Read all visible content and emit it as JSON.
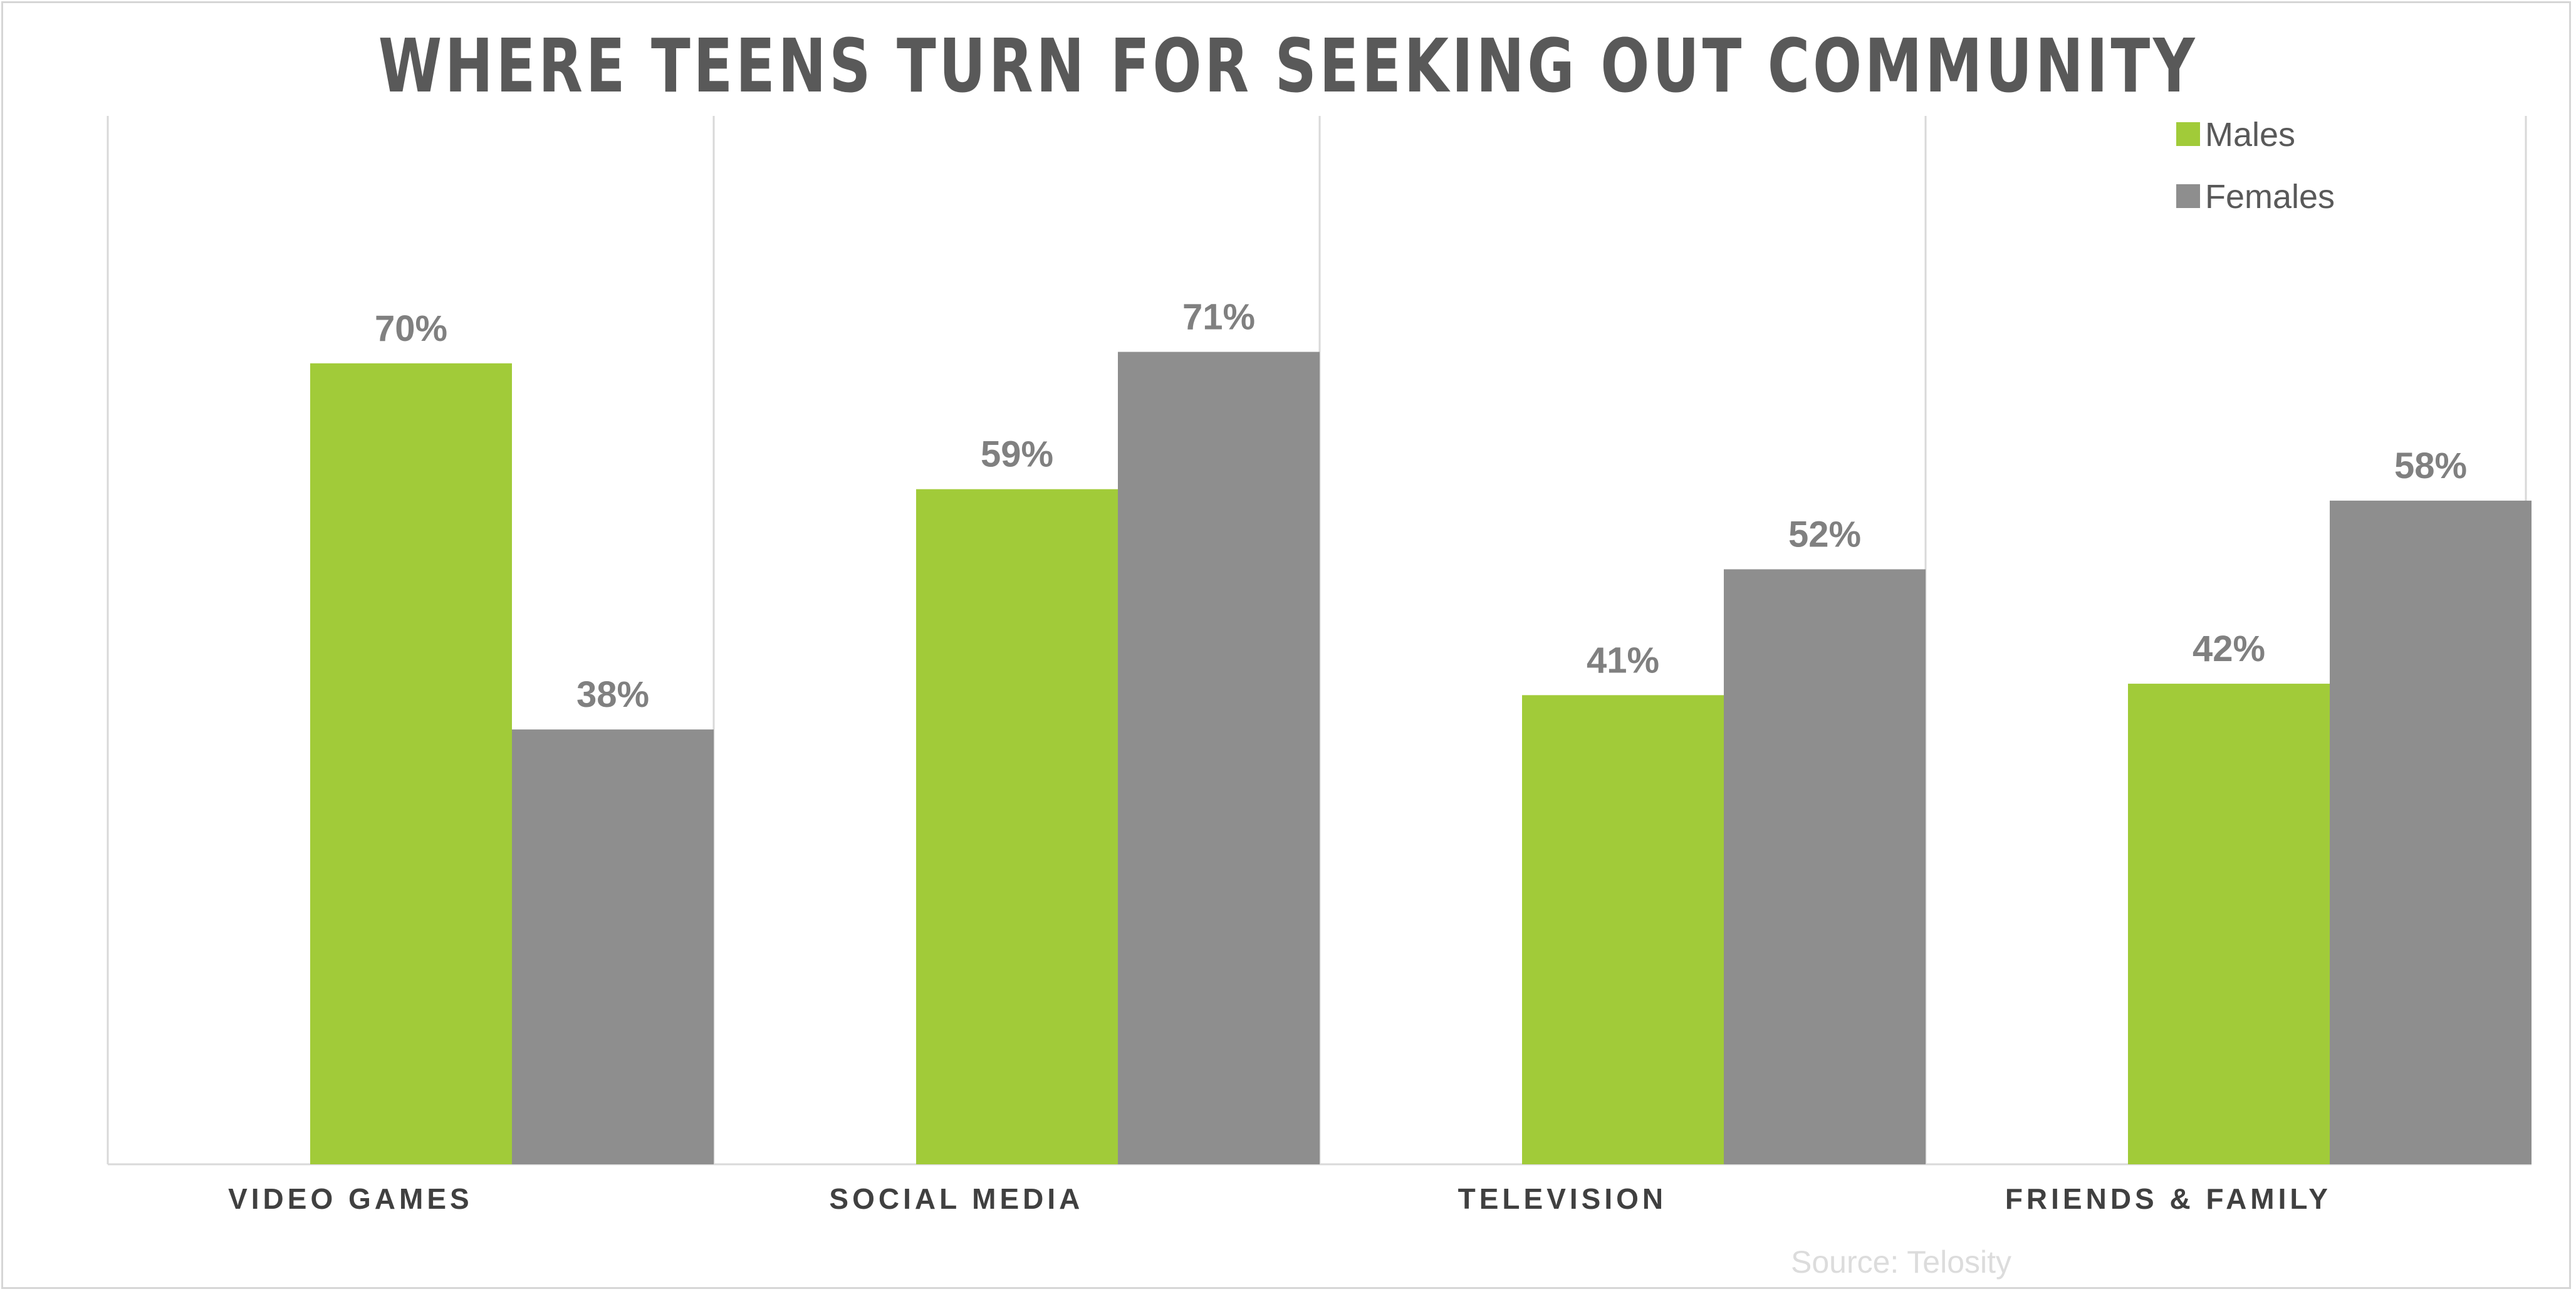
{
  "chart_data": {
    "type": "bar",
    "title": "WHERE TEENS TURN FOR SEEKING OUT COMMUNITY",
    "categories": [
      "VIDEO GAMES",
      "SOCIAL MEDIA",
      "TELEVISION",
      "FRIENDS & FAMILY"
    ],
    "series": [
      {
        "name": "Males",
        "color": "#a1cb39",
        "values": [
          70,
          59,
          41,
          42
        ],
        "labels": [
          "70%",
          "59%",
          "41%",
          "42%"
        ]
      },
      {
        "name": "Females",
        "color": "#8e8e8e",
        "values": [
          38,
          71,
          52,
          58
        ],
        "labels": [
          "38%",
          "71%",
          "52%",
          "58%"
        ]
      }
    ],
    "ylim": [
      0,
      80
    ],
    "grid": "vertical category separators",
    "legend_position": "top-right",
    "source": "Source: Telosity"
  },
  "colors": {
    "males": "#a1cb39",
    "females": "#8e8e8e",
    "axis": "#d9d9d9",
    "title": "#595959"
  }
}
